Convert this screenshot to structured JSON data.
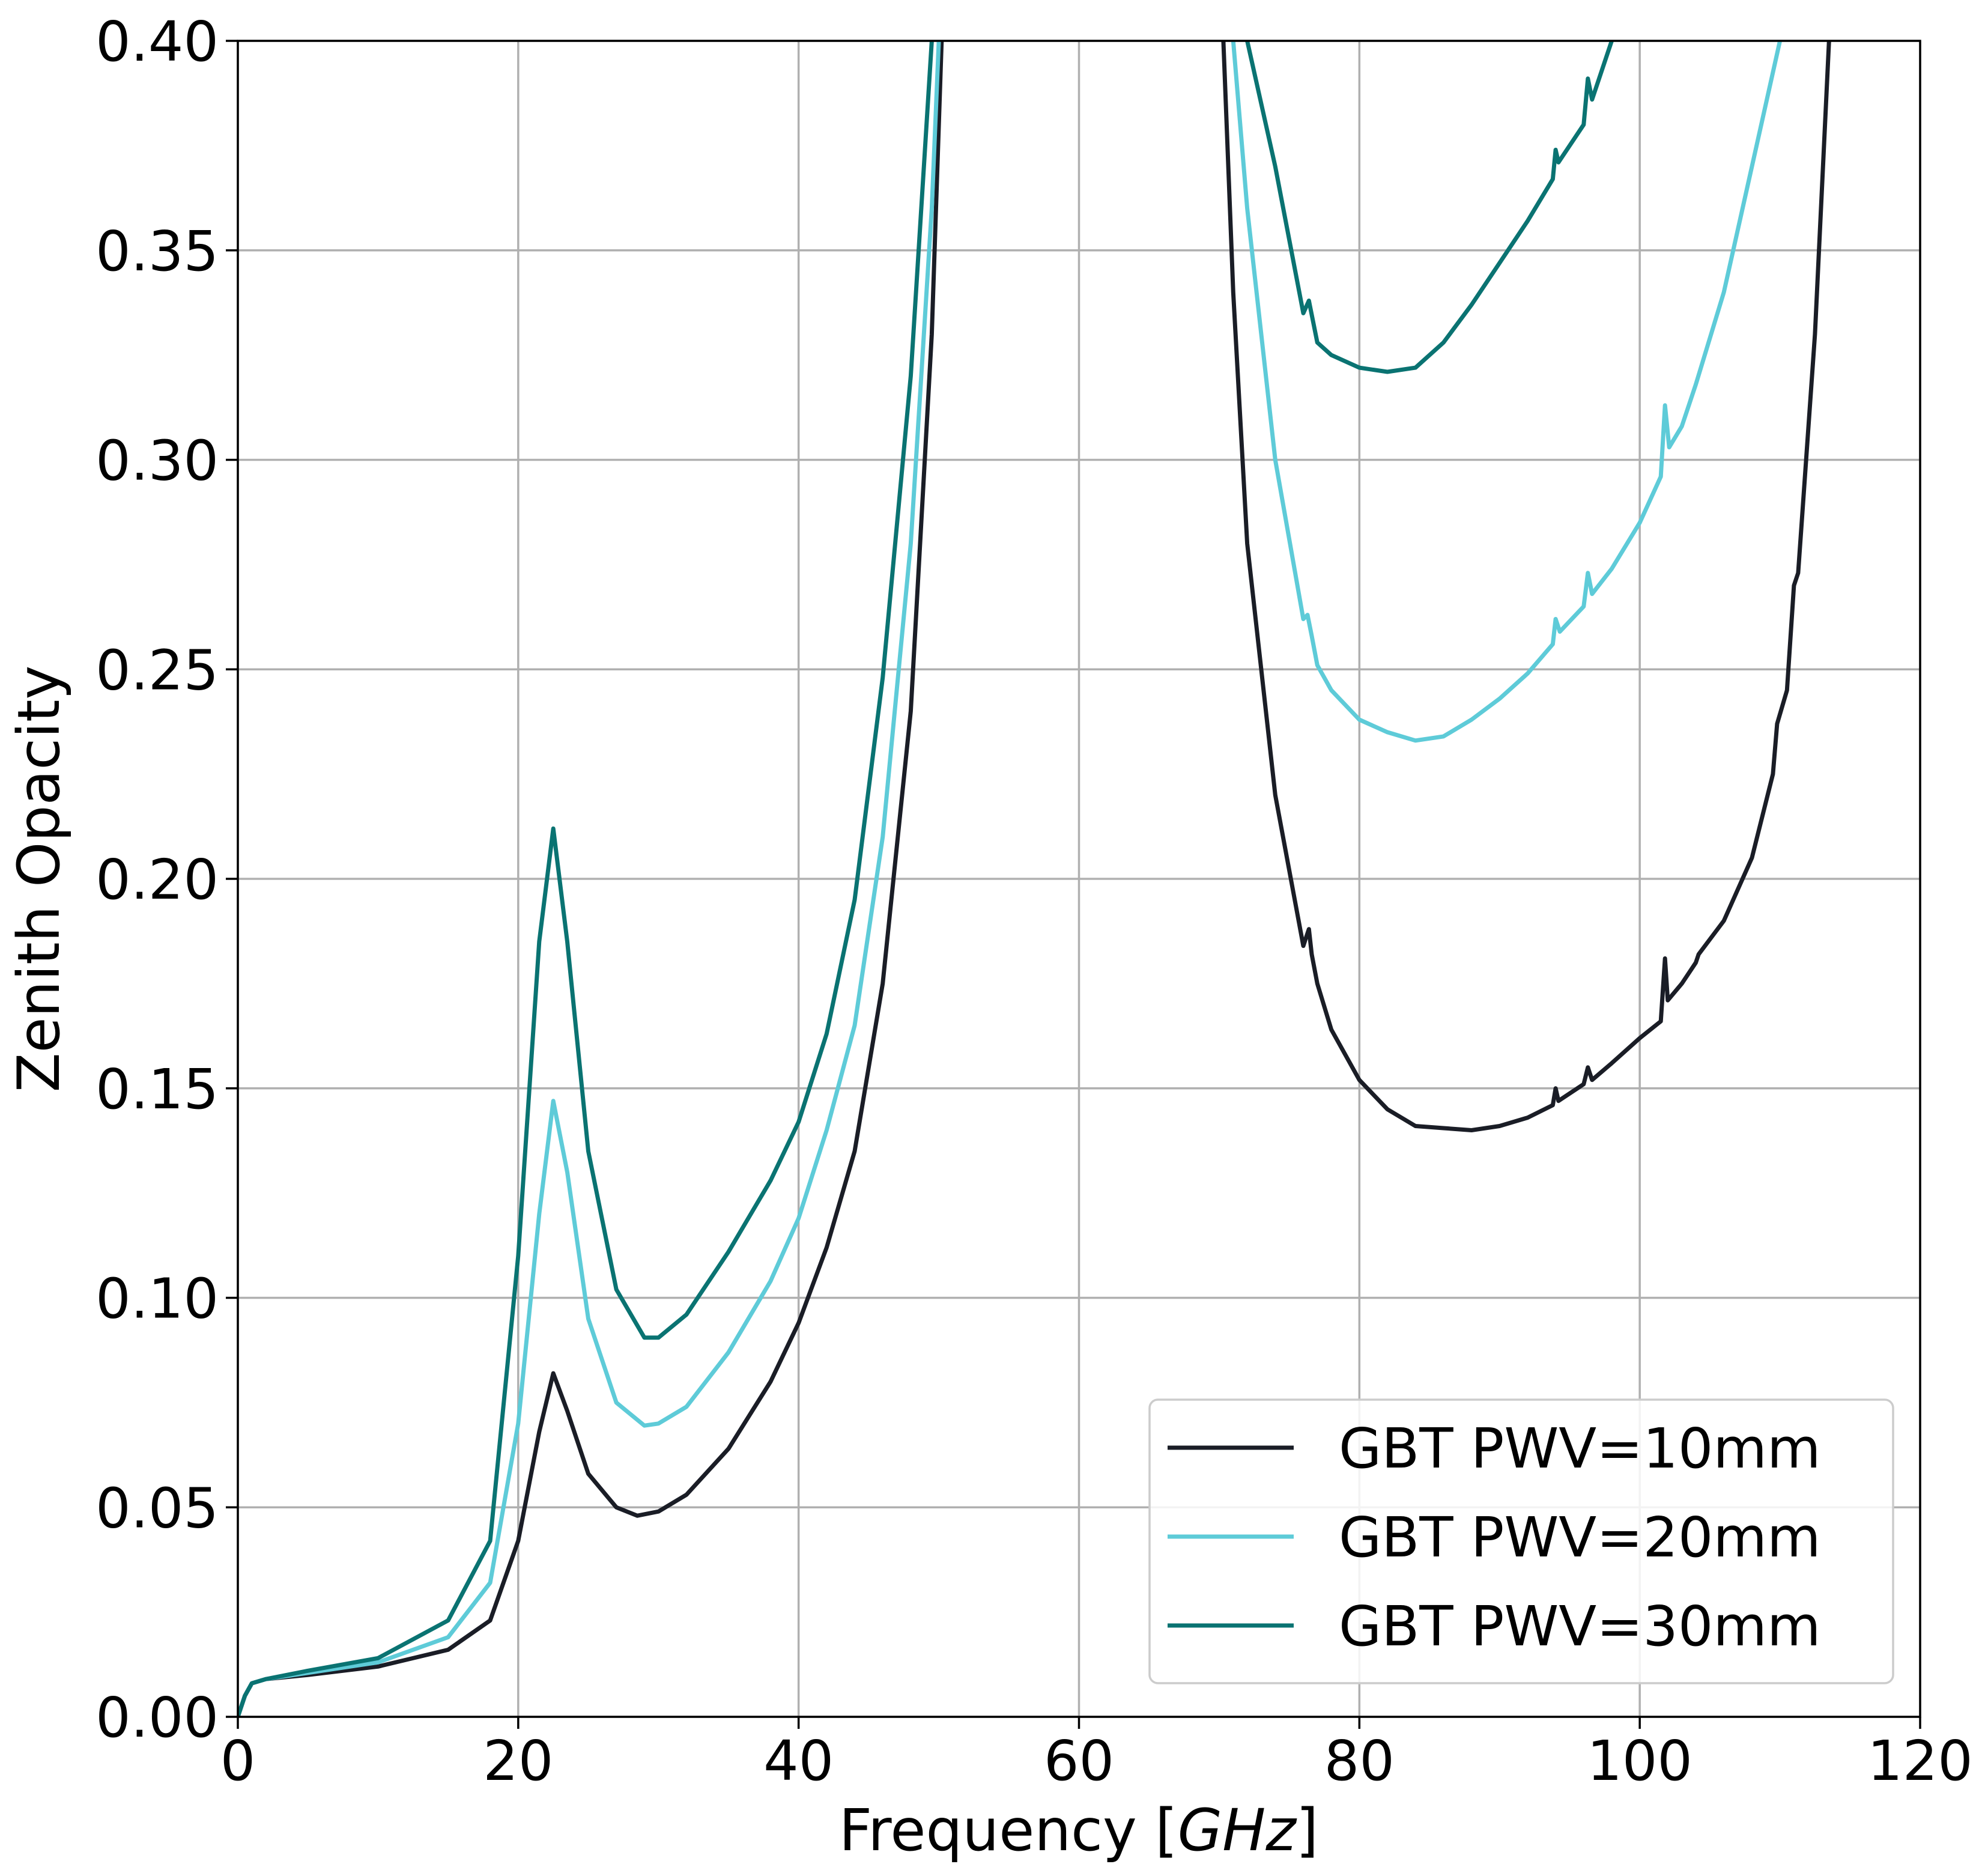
{
  "chart_data": {
    "type": "line",
    "title": "",
    "xlabel_prefix": "Frequency",
    "xlabel_unit": "GHz",
    "ylabel": "Zenith Opacity",
    "xlim": [
      0,
      120
    ],
    "ylim": [
      0,
      0.4
    ],
    "grid": true,
    "legend_position": "bottom-right",
    "x_ticks": [
      0,
      20,
      40,
      60,
      80,
      100,
      120
    ],
    "x_tick_labels": [
      "0",
      "20",
      "40",
      "60",
      "80",
      "100",
      "120"
    ],
    "y_ticks": [
      0,
      0.05,
      0.1,
      0.15,
      0.2,
      0.25,
      0.3,
      0.35,
      0.4
    ],
    "y_tick_labels": [
      "0.00",
      "0.05",
      "0.10",
      "0.15",
      "0.20",
      "0.25",
      "0.30",
      "0.35",
      "0.40"
    ],
    "series": [
      {
        "name": "GBT PWV=10mm",
        "color": "#1a1d26",
        "x": [
          0,
          0.5,
          1,
          2,
          5,
          10,
          15,
          18,
          20,
          21.5,
          22.5,
          23.5,
          25,
          27,
          28.5,
          30,
          32,
          35,
          38,
          40,
          42,
          44,
          46,
          48,
          49.5,
          50.2,
          70.3,
          71,
          72,
          74,
          76,
          76.4,
          76.6,
          77,
          78,
          80,
          82,
          84,
          86,
          88,
          90,
          92,
          93.8,
          94,
          94.2,
          96,
          96.3,
          96.6,
          98,
          100,
          101.5,
          101.8,
          102,
          103,
          104,
          104.2,
          106,
          108,
          109.5,
          109.8,
          110.5,
          111,
          111.3,
          112.5,
          113.5
        ],
        "values": [
          0.0,
          0.005,
          0.008,
          0.009,
          0.01,
          0.012,
          0.016,
          0.023,
          0.042,
          0.068,
          0.082,
          0.073,
          0.058,
          0.05,
          0.048,
          0.049,
          0.053,
          0.064,
          0.08,
          0.094,
          0.112,
          0.135,
          0.175,
          0.24,
          0.33,
          0.4,
          0.4,
          0.34,
          0.28,
          0.22,
          0.184,
          0.188,
          0.182,
          0.175,
          0.164,
          0.152,
          0.145,
          0.141,
          0.1405,
          0.14,
          0.141,
          0.143,
          0.146,
          0.15,
          0.147,
          0.151,
          0.155,
          0.152,
          0.156,
          0.162,
          0.166,
          0.181,
          0.171,
          0.175,
          0.18,
          0.182,
          0.19,
          0.205,
          0.225,
          0.237,
          0.245,
          0.27,
          0.273,
          0.33,
          0.4
        ]
      },
      {
        "name": "GBT PWV=20mm",
        "color": "#5ecbd8",
        "x": [
          0,
          0.5,
          1,
          2,
          5,
          10,
          15,
          18,
          20,
          21.5,
          22.5,
          23.5,
          25,
          27,
          29,
          30,
          32,
          35,
          38,
          40,
          42,
          44,
          46,
          48,
          49.5,
          50,
          71,
          72,
          74,
          76,
          76.3,
          76.6,
          77,
          78,
          80,
          82,
          84,
          86,
          88,
          90,
          92,
          93.8,
          94,
          94.3,
          96,
          96.3,
          96.6,
          98,
          100,
          101.5,
          101.8,
          102.1,
          103,
          104,
          106,
          108,
          110
        ],
        "values": [
          0.0,
          0.005,
          0.008,
          0.009,
          0.0105,
          0.013,
          0.019,
          0.032,
          0.07,
          0.12,
          0.147,
          0.13,
          0.095,
          0.075,
          0.0695,
          0.07,
          0.074,
          0.087,
          0.104,
          0.119,
          0.14,
          0.165,
          0.21,
          0.28,
          0.36,
          0.4,
          0.4,
          0.36,
          0.3,
          0.262,
          0.263,
          0.258,
          0.251,
          0.245,
          0.238,
          0.235,
          0.233,
          0.234,
          0.238,
          0.243,
          0.249,
          0.256,
          0.262,
          0.259,
          0.265,
          0.273,
          0.268,
          0.274,
          0.285,
          0.296,
          0.313,
          0.303,
          0.308,
          0.318,
          0.34,
          0.37,
          0.4
        ]
      },
      {
        "name": "GBT PWV=30mm",
        "color": "#0a7372",
        "x": [
          0,
          0.5,
          1,
          2,
          5,
          10,
          15,
          18,
          20,
          21.5,
          22.5,
          23.5,
          25,
          27,
          29,
          30,
          32,
          35,
          38,
          40,
          42,
          44,
          46,
          48,
          49.5,
          72,
          74,
          76,
          76.4,
          76.7,
          77,
          78,
          80,
          82,
          84,
          86,
          88,
          90,
          92,
          93.8,
          94,
          94.2,
          96,
          96.3,
          96.6,
          98
        ],
        "values": [
          0.0,
          0.005,
          0.008,
          0.009,
          0.011,
          0.014,
          0.023,
          0.042,
          0.11,
          0.185,
          0.212,
          0.185,
          0.135,
          0.102,
          0.0905,
          0.0905,
          0.096,
          0.111,
          0.128,
          0.142,
          0.163,
          0.195,
          0.248,
          0.32,
          0.4,
          0.4,
          0.37,
          0.335,
          0.338,
          0.333,
          0.328,
          0.325,
          0.322,
          0.321,
          0.322,
          0.328,
          0.337,
          0.347,
          0.357,
          0.367,
          0.374,
          0.371,
          0.38,
          0.391,
          0.386,
          0.4
        ]
      }
    ]
  }
}
